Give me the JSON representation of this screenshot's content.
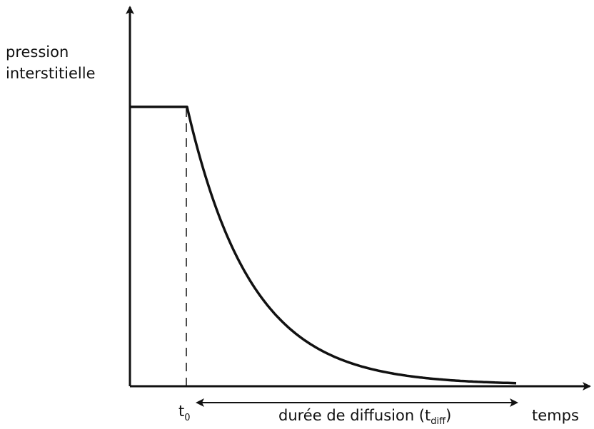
{
  "y_axis_label": [
    "pression",
    "interstitielle"
  ],
  "x_axis_label": "temps",
  "t0_label": {
    "main": "t",
    "sub": "0"
  },
  "duration_label": {
    "before": "durée de diffusion (t",
    "sub": "diff",
    "after": ")"
  }
}
